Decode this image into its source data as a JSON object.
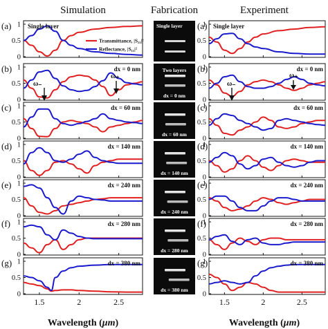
{
  "columns": {
    "simulation": "Simulation",
    "fabrication": "Fabrication",
    "experiment": "Experiment"
  },
  "row_labels": [
    "(a)",
    "(b)",
    "(c)",
    "(d)",
    "(e)",
    "(f)",
    "(g)"
  ],
  "panel_labels": [
    "Single layer",
    "dx = 0 nm",
    "dx = 60 nm",
    "dx = 140 nm",
    "dx = 240 nm",
    "dx = 280 nm",
    "dx = 380 nm"
  ],
  "fab_labels": [
    "Single layer",
    "Two layers",
    "dx = 0 nm",
    "dx = 60 nm",
    "dx = 140 nm",
    "dx = 240 nm",
    "dx = 280 nm",
    "dx = 380 nm"
  ],
  "mode_labels": {
    "minus": "ω₋",
    "plus": "ω₊"
  },
  "legend": {
    "transmittance": "Transmittance, |S₂₁|²",
    "reflectance": "Reflectance, |S₁₁|²"
  },
  "xlabel_text": "Wavelength (",
  "xlabel_unit": "μm",
  "xlabel_close": ")",
  "xtick_labels": [
    "1.5",
    "2",
    "2.5"
  ],
  "ytick_labels": [
    "0",
    "0.5",
    "1"
  ],
  "colors": {
    "transmittance": "#e02020",
    "reflectance": "#1a1acc"
  },
  "chart_data": [
    {
      "type": "line",
      "panel": "(a) simulation",
      "label": "Single layer",
      "xlim": [
        1.3,
        2.8
      ],
      "ylim": [
        0,
        1
      ],
      "x": [
        1.3,
        1.4,
        1.5,
        1.6,
        1.7,
        1.8,
        1.9,
        2.0,
        2.2,
        2.4,
        2.6,
        2.8
      ],
      "series": [
        {
          "name": "Transmittance, |S₂₁|²",
          "values": [
            0.5,
            0.35,
            0.15,
            0.02,
            0.2,
            0.5,
            0.65,
            0.75,
            0.85,
            0.9,
            0.93,
            0.95
          ]
        },
        {
          "name": "Reflectance, |S₁₁|²",
          "values": [
            0.5,
            0.65,
            0.85,
            0.95,
            0.78,
            0.5,
            0.35,
            0.25,
            0.15,
            0.1,
            0.07,
            0.05
          ]
        }
      ]
    },
    {
      "type": "line",
      "panel": "(b) simulation",
      "label": "dx = 0 nm",
      "xlim": [
        1.3,
        2.8
      ],
      "ylim": [
        0,
        1
      ],
      "x": [
        1.3,
        1.4,
        1.5,
        1.6,
        1.7,
        1.8,
        1.9,
        2.0,
        2.1,
        2.2,
        2.3,
        2.4,
        2.5,
        2.6,
        2.7,
        2.8
      ],
      "series": [
        {
          "name": "Transmittance, |S₂₁|²",
          "values": [
            0.6,
            0.35,
            0.08,
            0.05,
            0.3,
            0.55,
            0.7,
            0.75,
            0.72,
            0.6,
            0.4,
            0.12,
            0.3,
            0.45,
            0.5,
            0.55
          ]
        },
        {
          "name": "Reflectance, |S₁₁|²",
          "values": [
            0.35,
            0.6,
            0.85,
            0.9,
            0.65,
            0.42,
            0.3,
            0.25,
            0.28,
            0.4,
            0.58,
            0.82,
            0.65,
            0.52,
            0.48,
            0.45
          ]
        }
      ]
    },
    {
      "type": "line",
      "panel": "(c) simulation",
      "label": "dx = 60 nm",
      "xlim": [
        1.3,
        2.8
      ],
      "ylim": [
        0,
        1
      ],
      "x": [
        1.3,
        1.4,
        1.5,
        1.6,
        1.7,
        1.8,
        1.9,
        2.0,
        2.1,
        2.2,
        2.3,
        2.4,
        2.5,
        2.6,
        2.7,
        2.8
      ],
      "series": [
        {
          "name": "Transmittance, |S₂₁|²",
          "values": [
            0.6,
            0.3,
            0.06,
            0.05,
            0.3,
            0.5,
            0.55,
            0.5,
            0.45,
            0.35,
            0.2,
            0.35,
            0.4,
            0.45,
            0.5,
            0.55
          ]
        },
        {
          "name": "Reflectance, |S₁₁|²",
          "values": [
            0.35,
            0.65,
            0.9,
            0.9,
            0.6,
            0.45,
            0.4,
            0.45,
            0.52,
            0.6,
            0.75,
            0.6,
            0.55,
            0.5,
            0.48,
            0.45
          ]
        }
      ]
    },
    {
      "type": "line",
      "panel": "(d) simulation",
      "label": "dx = 140 nm",
      "xlim": [
        1.3,
        2.8
      ],
      "ylim": [
        0,
        1
      ],
      "x": [
        1.3,
        1.4,
        1.5,
        1.6,
        1.7,
        1.8,
        1.9,
        2.0,
        2.1,
        2.2,
        2.3,
        2.4,
        2.5,
        2.6,
        2.7,
        2.8
      ],
      "series": [
        {
          "name": "Transmittance, |S₂₁|²",
          "values": [
            0.5,
            0.2,
            0.05,
            0.2,
            0.45,
            0.5,
            0.4,
            0.25,
            0.12,
            0.35,
            0.45,
            0.5,
            0.55,
            0.55,
            0.55,
            0.55
          ]
        },
        {
          "name": "Reflectance, |S₁₁|²",
          "values": [
            0.4,
            0.75,
            0.9,
            0.75,
            0.5,
            0.45,
            0.55,
            0.7,
            0.8,
            0.6,
            0.5,
            0.45,
            0.42,
            0.42,
            0.42,
            0.42
          ]
        }
      ]
    },
    {
      "type": "line",
      "panel": "(e) simulation",
      "label": "dx = 240 nm",
      "xlim": [
        1.3,
        2.8
      ],
      "ylim": [
        0,
        1
      ],
      "x": [
        1.3,
        1.4,
        1.5,
        1.6,
        1.7,
        1.8,
        1.9,
        2.0,
        2.1,
        2.2,
        2.3,
        2.4,
        2.5,
        2.6,
        2.7,
        2.8
      ],
      "series": [
        {
          "name": "Transmittance, |S₂₁|²",
          "values": [
            0.55,
            0.3,
            0.1,
            0.05,
            0.15,
            0.3,
            0.35,
            0.4,
            0.45,
            0.5,
            0.52,
            0.55,
            0.55,
            0.55,
            0.55,
            0.55
          ]
        },
        {
          "name": "Reflectance, |S₁₁|²",
          "values": [
            0.9,
            0.95,
            0.85,
            0.55,
            0.25,
            0.05,
            0.45,
            0.6,
            0.55,
            0.5,
            0.48,
            0.45,
            0.45,
            0.45,
            0.45,
            0.45
          ]
        }
      ]
    },
    {
      "type": "line",
      "panel": "(f) simulation",
      "label": "dx = 280 nm",
      "xlim": [
        1.3,
        2.8
      ],
      "ylim": [
        0,
        1
      ],
      "x": [
        1.3,
        1.4,
        1.5,
        1.6,
        1.7,
        1.8,
        1.9,
        2.0,
        2.1,
        2.2,
        2.3,
        2.4,
        2.5,
        2.6,
        2.7,
        2.8
      ],
      "series": [
        {
          "name": "Transmittance, |S₂₁|²",
          "values": [
            0.35,
            0.2,
            0.05,
            0.3,
            0.45,
            0.15,
            0.3,
            0.45,
            0.5,
            0.5,
            0.5,
            0.5,
            0.5,
            0.5,
            0.5,
            0.5
          ]
        },
        {
          "name": "Reflectance, |S₁₁|²",
          "values": [
            0.85,
            0.9,
            0.85,
            0.6,
            0.45,
            0.75,
            0.65,
            0.55,
            0.5,
            0.48,
            0.48,
            0.48,
            0.48,
            0.48,
            0.48,
            0.48
          ]
        }
      ]
    },
    {
      "type": "line",
      "panel": "(g) simulation",
      "label": "dx = 380 nm",
      "xlim": [
        1.3,
        2.8
      ],
      "ylim": [
        0,
        1
      ],
      "x": [
        1.3,
        1.4,
        1.5,
        1.6,
        1.65,
        1.7,
        1.8,
        1.9,
        2.0,
        2.2,
        2.4,
        2.6,
        2.8
      ],
      "series": [
        {
          "name": "Transmittance, |S₂₁|²",
          "values": [
            0.35,
            0.3,
            0.25,
            0.15,
            0.08,
            0.1,
            0.12,
            0.12,
            0.1,
            0.08,
            0.06,
            0.05,
            0.05
          ]
        },
        {
          "name": "Reflectance, |S₁₁|²",
          "values": [
            0.55,
            0.5,
            0.4,
            0.2,
            0.1,
            0.5,
            0.7,
            0.8,
            0.85,
            0.88,
            0.9,
            0.9,
            0.9
          ]
        }
      ]
    },
    {
      "type": "line",
      "panel": "(a) experiment",
      "label": "Single layer",
      "xlim": [
        1.3,
        2.8
      ],
      "ylim": [
        0,
        1
      ],
      "x": [
        1.3,
        1.4,
        1.5,
        1.6,
        1.7,
        1.8,
        1.9,
        2.0,
        2.2,
        2.4,
        2.6,
        2.8
      ],
      "series": [
        {
          "name": "Transmittance, |S₂₁|²",
          "values": [
            0.6,
            0.45,
            0.2,
            0.1,
            0.25,
            0.45,
            0.6,
            0.7,
            0.8,
            0.85,
            0.9,
            0.92
          ]
        },
        {
          "name": "Reflectance, |S₁₁|²",
          "values": [
            0.4,
            0.55,
            0.7,
            0.72,
            0.55,
            0.4,
            0.3,
            0.25,
            0.15,
            0.1,
            0.08,
            0.08
          ]
        }
      ]
    },
    {
      "type": "line",
      "panel": "(b) experiment",
      "label": "dx = 0 nm",
      "xlim": [
        1.3,
        2.8
      ],
      "ylim": [
        0,
        1
      ],
      "x": [
        1.3,
        1.4,
        1.5,
        1.6,
        1.7,
        1.8,
        1.9,
        2.0,
        2.1,
        2.2,
        2.3,
        2.4,
        2.5,
        2.6,
        2.7,
        2.8
      ],
      "series": [
        {
          "name": "Transmittance, |S₂₁|²",
          "values": [
            0.6,
            0.45,
            0.2,
            0.1,
            0.25,
            0.45,
            0.55,
            0.6,
            0.55,
            0.45,
            0.35,
            0.28,
            0.35,
            0.45,
            0.5,
            0.55
          ]
        },
        {
          "name": "Reflectance, |S₁₁|²",
          "values": [
            0.35,
            0.5,
            0.7,
            0.75,
            0.55,
            0.4,
            0.35,
            0.35,
            0.4,
            0.5,
            0.62,
            0.7,
            0.62,
            0.5,
            0.45,
            0.42
          ]
        }
      ]
    },
    {
      "type": "line",
      "panel": "(c) experiment",
      "label": "dx = 60 nm",
      "xlim": [
        1.3,
        2.8
      ],
      "ylim": [
        0,
        1
      ],
      "x": [
        1.3,
        1.4,
        1.5,
        1.6,
        1.7,
        1.8,
        1.9,
        2.0,
        2.1,
        2.2,
        2.3,
        2.4,
        2.5,
        2.6,
        2.7,
        2.8
      ],
      "series": [
        {
          "name": "Transmittance, |S₂₁|²",
          "values": [
            0.6,
            0.4,
            0.15,
            0.1,
            0.25,
            0.35,
            0.5,
            0.65,
            0.55,
            0.35,
            0.3,
            0.35,
            0.45,
            0.5,
            0.55,
            0.55
          ]
        },
        {
          "name": "Reflectance, |S₁₁|²",
          "values": [
            0.4,
            0.6,
            0.75,
            0.7,
            0.55,
            0.45,
            0.35,
            0.25,
            0.3,
            0.55,
            0.6,
            0.55,
            0.5,
            0.45,
            0.42,
            0.4
          ]
        }
      ]
    },
    {
      "type": "line",
      "panel": "(d) experiment",
      "label": "dx = 140 nm",
      "xlim": [
        1.3,
        2.8
      ],
      "ylim": [
        0,
        1
      ],
      "x": [
        1.3,
        1.4,
        1.5,
        1.6,
        1.7,
        1.8,
        1.9,
        2.0,
        2.1,
        2.2,
        2.3,
        2.4,
        2.5,
        2.6,
        2.7,
        2.8
      ],
      "series": [
        {
          "name": "Transmittance, |S₂₁|²",
          "values": [
            0.5,
            0.35,
            0.15,
            0.25,
            0.5,
            0.65,
            0.5,
            0.3,
            0.2,
            0.35,
            0.5,
            0.55,
            0.5,
            0.45,
            0.45,
            0.45
          ]
        },
        {
          "name": "Reflectance, |S₁₁|²",
          "values": [
            0.45,
            0.6,
            0.75,
            0.65,
            0.4,
            0.25,
            0.35,
            0.55,
            0.6,
            0.45,
            0.35,
            0.3,
            0.35,
            0.45,
            0.5,
            0.5
          ]
        }
      ]
    },
    {
      "type": "line",
      "panel": "(e) experiment",
      "label": "dx = 240 nm",
      "xlim": [
        1.3,
        2.8
      ],
      "ylim": [
        0,
        1
      ],
      "x": [
        1.3,
        1.4,
        1.5,
        1.6,
        1.7,
        1.8,
        1.9,
        2.0,
        2.1,
        2.2,
        2.3,
        2.4,
        2.5,
        2.6,
        2.7,
        2.8
      ],
      "series": [
        {
          "name": "Transmittance, |S₂₁|²",
          "values": [
            0.55,
            0.45,
            0.25,
            0.15,
            0.2,
            0.3,
            0.45,
            0.55,
            0.5,
            0.4,
            0.35,
            0.4,
            0.45,
            0.5,
            0.5,
            0.5
          ]
        },
        {
          "name": "Reflectance, |S₁₁|²",
          "values": [
            0.5,
            0.6,
            0.6,
            0.45,
            0.25,
            0.15,
            0.15,
            0.3,
            0.45,
            0.55,
            0.55,
            0.5,
            0.45,
            0.45,
            0.45,
            0.45
          ]
        }
      ]
    },
    {
      "type": "line",
      "panel": "(f) experiment",
      "label": "dx = 280 nm",
      "xlim": [
        1.3,
        2.8
      ],
      "ylim": [
        0,
        1
      ],
      "x": [
        1.3,
        1.4,
        1.5,
        1.6,
        1.7,
        1.8,
        1.9,
        2.0,
        2.1,
        2.2,
        2.3,
        2.4,
        2.5,
        2.6,
        2.7,
        2.8
      ],
      "series": [
        {
          "name": "Transmittance, |S₂₁|²",
          "values": [
            0.45,
            0.3,
            0.15,
            0.35,
            0.5,
            0.4,
            0.3,
            0.45,
            0.5,
            0.5,
            0.45,
            0.45,
            0.45,
            0.45,
            0.45,
            0.45
          ]
        },
        {
          "name": "Reflectance, |S₁₁|²",
          "values": [
            0.45,
            0.55,
            0.6,
            0.4,
            0.3,
            0.45,
            0.5,
            0.35,
            0.3,
            0.3,
            0.35,
            0.38,
            0.38,
            0.38,
            0.38,
            0.38
          ]
        }
      ]
    },
    {
      "type": "line",
      "panel": "(g) experiment",
      "label": "dx = 380 nm",
      "xlim": [
        1.3,
        2.8
      ],
      "ylim": [
        0,
        1
      ],
      "x": [
        1.3,
        1.4,
        1.5,
        1.6,
        1.7,
        1.8,
        1.9,
        2.0,
        2.1,
        2.2,
        2.3,
        2.4,
        2.5,
        2.6,
        2.7,
        2.8
      ],
      "series": [
        {
          "name": "Transmittance, |S₂₁|²",
          "values": [
            0.6,
            0.5,
            0.3,
            0.1,
            0.2,
            0.35,
            0.3,
            0.2,
            0.1,
            0.05,
            0.05,
            0.05,
            0.05,
            0.05,
            0.05,
            0.05
          ]
        },
        {
          "name": "Reflectance, |S₁₁|²",
          "values": [
            0.3,
            0.35,
            0.4,
            0.35,
            0.3,
            0.35,
            0.55,
            0.7,
            0.8,
            0.85,
            0.88,
            0.9,
            0.9,
            0.9,
            0.9,
            0.9
          ]
        }
      ]
    }
  ]
}
